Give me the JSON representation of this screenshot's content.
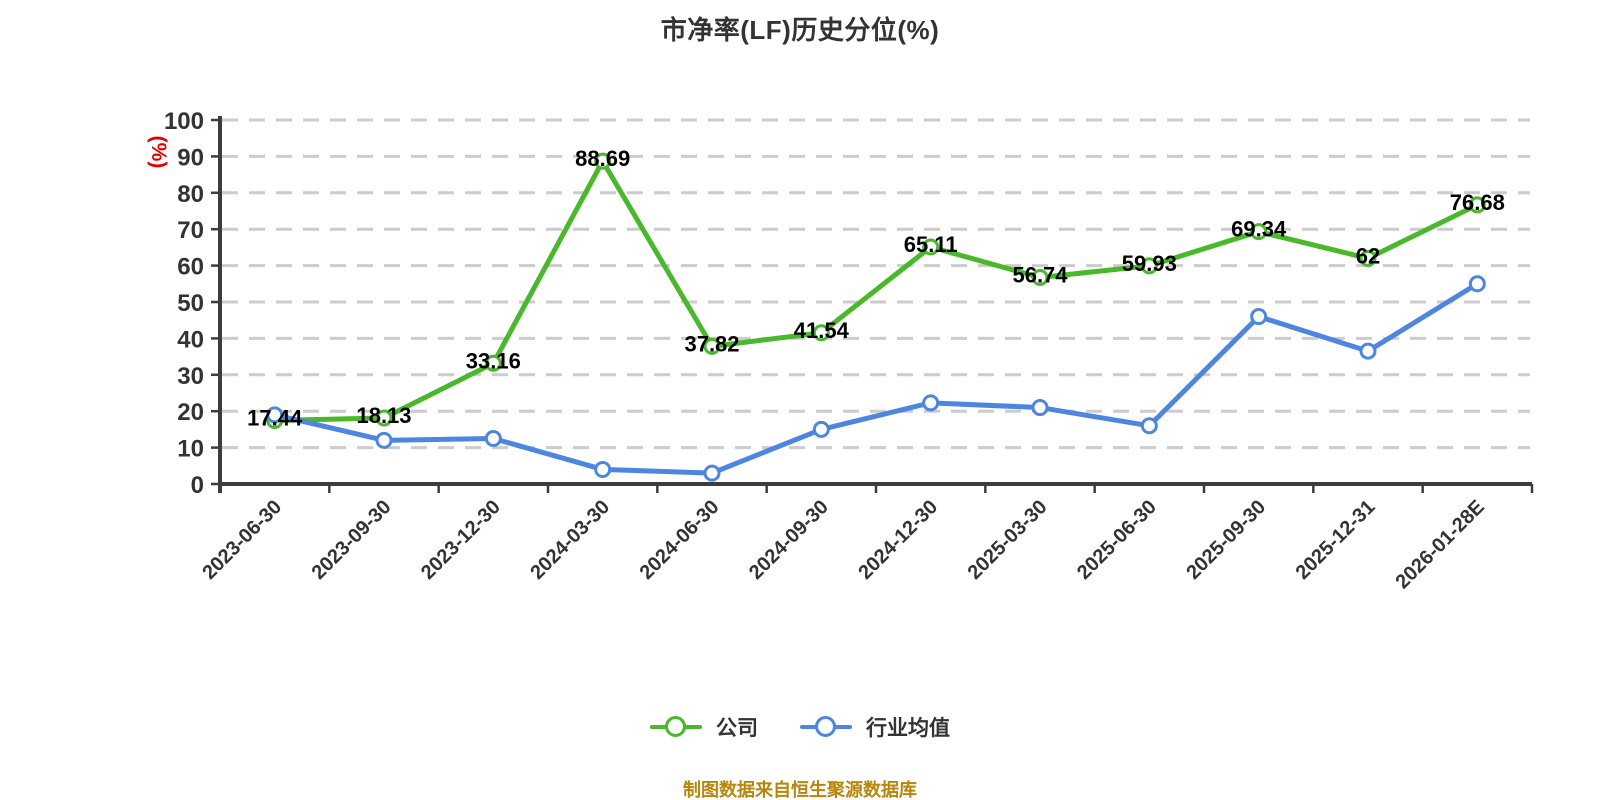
{
  "title": "市净率(LF)历史分位(%)",
  "y_axis": {
    "unit": "(%)",
    "unit_color": "#e60000",
    "tick_labels": [
      "0",
      "10",
      "20",
      "30",
      "40",
      "50",
      "60",
      "70",
      "80",
      "90",
      "100"
    ],
    "min": 0,
    "max": 100
  },
  "legend": {
    "items": [
      {
        "label": "公司",
        "color": "#49b82a"
      },
      {
        "label": "行业均值",
        "color": "#4c86e0"
      }
    ]
  },
  "footer": {
    "text": "制图数据来自恒生聚源数据库",
    "color": "#b8860b"
  },
  "chart_data": {
    "type": "line",
    "title": "市净率(LF)历史分位(%)",
    "categories": [
      "2023-06-30",
      "2023-09-30",
      "2023-12-30",
      "2024-03-30",
      "2024-06-30",
      "2024-09-30",
      "2024-12-30",
      "2025-03-30",
      "2025-06-30",
      "2025-09-30",
      "2025-12-31",
      "2026-01-28E"
    ],
    "series": [
      {
        "name": "公司",
        "color": "#49b82a",
        "values": [
          17.44,
          18.13,
          33.16,
          88.69,
          37.82,
          41.54,
          65.11,
          56.74,
          59.93,
          69.34,
          62,
          76.68
        ],
        "point_labels": [
          "17.44",
          "18.13",
          "33.16",
          "88.69",
          "37.82",
          "41.54",
          "65.11",
          "56.74",
          "59.93",
          "69.34",
          "62",
          "76.68"
        ]
      },
      {
        "name": "行业均值",
        "color": "#4c86e0",
        "values": [
          19,
          12,
          12.5,
          4,
          3,
          15,
          22.3,
          21,
          16,
          46,
          36.5,
          55
        ],
        "point_labels": null
      }
    ],
    "ylabel": "(%)",
    "ylim": [
      0,
      100
    ],
    "grid": "horizontal-dashed",
    "legend_position": "bottom"
  }
}
